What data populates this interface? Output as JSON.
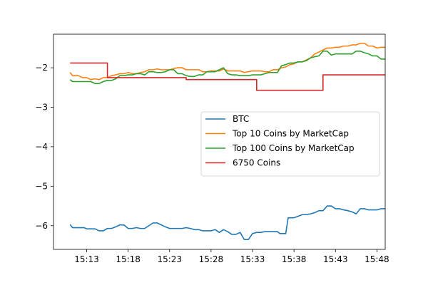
{
  "chart_data": {
    "type": "line",
    "title": "",
    "xlabel": "",
    "ylabel": "",
    "x_ticks": [
      "15:13",
      "15:18",
      "15:23",
      "15:28",
      "15:33",
      "15:38",
      "15:43",
      "15:48"
    ],
    "x_tick_minutes": [
      13,
      18,
      23,
      28,
      33,
      38,
      43,
      48
    ],
    "y_ticks": [
      -2,
      -3,
      -4,
      -5,
      -6
    ],
    "y_tick_labels": [
      "−2",
      "−3",
      "−4",
      "−5",
      "−6"
    ],
    "xlim": [
      "15:09",
      "15:49"
    ],
    "ylim": [
      -6.6,
      -1.15
    ],
    "grid": false,
    "legend_position": "center-right",
    "series": [
      {
        "name": "BTC",
        "color": "#1f77b4",
        "points": [
          [
            "15:11",
            -5.97
          ],
          [
            "15:11.3",
            -6.05
          ],
          [
            "15:12",
            -6.05
          ],
          [
            "15:12.7",
            -6.05
          ],
          [
            "15:13",
            -6.08
          ],
          [
            "15:13.5",
            -6.08
          ],
          [
            "15:14",
            -6.08
          ],
          [
            "15:14.5",
            -6.13
          ],
          [
            "15:15",
            -6.13
          ],
          [
            "15:15.5",
            -6.07
          ],
          [
            "15:16",
            -6.07
          ],
          [
            "15:16.5",
            -6.03
          ],
          [
            "15:17",
            -5.98
          ],
          [
            "15:17.5",
            -5.98
          ],
          [
            "15:18",
            -6.07
          ],
          [
            "15:18.5",
            -6.07
          ],
          [
            "15:19",
            -6.05
          ],
          [
            "15:19.5",
            -6.07
          ],
          [
            "15:20",
            -6.07
          ],
          [
            "15:20.5",
            -6.0
          ],
          [
            "15:21",
            -5.93
          ],
          [
            "15:21.5",
            -5.93
          ],
          [
            "15:22",
            -5.98
          ],
          [
            "15:22.5",
            -6.03
          ],
          [
            "15:23",
            -6.07
          ],
          [
            "15:23.5",
            -6.07
          ],
          [
            "15:24",
            -6.07
          ],
          [
            "15:24.5",
            -6.07
          ],
          [
            "15:25",
            -6.05
          ],
          [
            "15:25.5",
            -6.07
          ],
          [
            "15:26",
            -6.1
          ],
          [
            "15:26.5",
            -6.1
          ],
          [
            "15:27",
            -6.13
          ],
          [
            "15:27.5",
            -6.13
          ],
          [
            "15:28",
            -6.13
          ],
          [
            "15:28.5",
            -6.1
          ],
          [
            "15:29",
            -6.17
          ],
          [
            "15:29.5",
            -6.1
          ],
          [
            "15:30",
            -6.15
          ],
          [
            "15:30.5",
            -6.22
          ],
          [
            "15:31",
            -6.22
          ],
          [
            "15:31.5",
            -6.17
          ],
          [
            "15:32",
            -6.35
          ],
          [
            "15:32.5",
            -6.35
          ],
          [
            "15:33",
            -6.2
          ],
          [
            "15:33.5",
            -6.17
          ],
          [
            "15:34",
            -6.17
          ],
          [
            "15:34.5",
            -6.15
          ],
          [
            "15:35",
            -6.15
          ],
          [
            "15:35.5",
            -6.15
          ],
          [
            "15:36",
            -6.15
          ],
          [
            "15:36.3",
            -6.2
          ],
          [
            "15:37",
            -6.2
          ],
          [
            "15:37.3",
            -5.8
          ],
          [
            "15:38",
            -5.8
          ],
          [
            "15:38.5",
            -5.76
          ],
          [
            "15:39",
            -5.72
          ],
          [
            "15:39.5",
            -5.72
          ],
          [
            "15:40",
            -5.7
          ],
          [
            "15:40.5",
            -5.67
          ],
          [
            "15:41",
            -5.62
          ],
          [
            "15:41.5",
            -5.62
          ],
          [
            "15:42",
            -5.5
          ],
          [
            "15:42.5",
            -5.5
          ],
          [
            "15:43",
            -5.57
          ],
          [
            "15:43.5",
            -5.57
          ],
          [
            "15:44",
            -5.6
          ],
          [
            "15:44.5",
            -5.62
          ],
          [
            "15:45",
            -5.65
          ],
          [
            "15:45.5",
            -5.7
          ],
          [
            "15:46",
            -5.57
          ],
          [
            "15:46.5",
            -5.57
          ],
          [
            "15:47",
            -5.6
          ],
          [
            "15:47.5",
            -5.6
          ],
          [
            "15:48",
            -5.6
          ],
          [
            "15:48.5",
            -5.57
          ],
          [
            "15:49",
            -5.57
          ]
        ]
      },
      {
        "name": "Top 10 Coins by MarketCap",
        "color": "#ff7f0e",
        "points": [
          [
            "15:11",
            -2.12
          ],
          [
            "15:11.3",
            -2.2
          ],
          [
            "15:12",
            -2.2
          ],
          [
            "15:12.5",
            -2.25
          ],
          [
            "15:13",
            -2.25
          ],
          [
            "15:13.5",
            -2.3
          ],
          [
            "15:14",
            -2.28
          ],
          [
            "15:14.5",
            -2.3
          ],
          [
            "15:15",
            -2.25
          ],
          [
            "15:15.5",
            -2.25
          ],
          [
            "15:16",
            -2.2
          ],
          [
            "15:16.5",
            -2.18
          ],
          [
            "15:17",
            -2.15
          ],
          [
            "15:17.5",
            -2.15
          ],
          [
            "15:18",
            -2.12
          ],
          [
            "15:18.5",
            -2.15
          ],
          [
            "15:19",
            -2.15
          ],
          [
            "15:19.5",
            -2.12
          ],
          [
            "15:20",
            -2.1
          ],
          [
            "15:20.5",
            -2.05
          ],
          [
            "15:21",
            -2.05
          ],
          [
            "15:21.5",
            -2.03
          ],
          [
            "15:22",
            -2.05
          ],
          [
            "15:22.5",
            -2.05
          ],
          [
            "15:23",
            -2.05
          ],
          [
            "15:23.5",
            -2.02
          ],
          [
            "15:24",
            -2.0
          ],
          [
            "15:24.5",
            -2.0
          ],
          [
            "15:25",
            -2.05
          ],
          [
            "15:25.5",
            -2.05
          ],
          [
            "15:26",
            -2.05
          ],
          [
            "15:26.5",
            -2.05
          ],
          [
            "15:27",
            -2.1
          ],
          [
            "15:27.5",
            -2.1
          ],
          [
            "15:28",
            -2.08
          ],
          [
            "15:28.5",
            -2.08
          ],
          [
            "15:29",
            -2.08
          ],
          [
            "15:29.5",
            -2.03
          ],
          [
            "15:30",
            -2.08
          ],
          [
            "15:30.5",
            -2.08
          ],
          [
            "15:31",
            -2.08
          ],
          [
            "15:31.5",
            -2.08
          ],
          [
            "15:32",
            -2.12
          ],
          [
            "15:32.5",
            -2.1
          ],
          [
            "15:33",
            -2.08
          ],
          [
            "15:33.5",
            -2.08
          ],
          [
            "15:34",
            -2.08
          ],
          [
            "15:34.5",
            -2.1
          ],
          [
            "15:35",
            -2.1
          ],
          [
            "15:35.5",
            -2.05
          ],
          [
            "15:36",
            -2.05
          ],
          [
            "15:36.5",
            -2.0
          ],
          [
            "15:37",
            -1.98
          ],
          [
            "15:37.5",
            -1.92
          ],
          [
            "15:38",
            -1.9
          ],
          [
            "15:38.5",
            -1.85
          ],
          [
            "15:39",
            -1.85
          ],
          [
            "15:39.5",
            -1.8
          ],
          [
            "15:40",
            -1.75
          ],
          [
            "15:40.5",
            -1.65
          ],
          [
            "15:41",
            -1.6
          ],
          [
            "15:41.5",
            -1.55
          ],
          [
            "15:42",
            -1.5
          ],
          [
            "15:42.5",
            -1.5
          ],
          [
            "15:43",
            -1.48
          ],
          [
            "15:43.5",
            -1.48
          ],
          [
            "15:44",
            -1.45
          ],
          [
            "15:44.5",
            -1.45
          ],
          [
            "15:45",
            -1.42
          ],
          [
            "15:45.5",
            -1.42
          ],
          [
            "15:46",
            -1.38
          ],
          [
            "15:46.5",
            -1.38
          ],
          [
            "15:47",
            -1.45
          ],
          [
            "15:47.5",
            -1.45
          ],
          [
            "15:48",
            -1.5
          ],
          [
            "15:48.5",
            -1.48
          ],
          [
            "15:49",
            -1.48
          ]
        ]
      },
      {
        "name": "Top 100 Coins by MarketCap",
        "color": "#2ca02c",
        "points": [
          [
            "15:11",
            -2.3
          ],
          [
            "15:11.3",
            -2.35
          ],
          [
            "15:12",
            -2.35
          ],
          [
            "15:12.5",
            -2.35
          ],
          [
            "15:13",
            -2.35
          ],
          [
            "15:13.5",
            -2.35
          ],
          [
            "15:14",
            -2.4
          ],
          [
            "15:14.5",
            -2.4
          ],
          [
            "15:15",
            -2.35
          ],
          [
            "15:15.5",
            -2.32
          ],
          [
            "15:16",
            -2.32
          ],
          [
            "15:16.5",
            -2.28
          ],
          [
            "15:17",
            -2.2
          ],
          [
            "15:17.5",
            -2.2
          ],
          [
            "15:18",
            -2.18
          ],
          [
            "15:18.5",
            -2.18
          ],
          [
            "15:19",
            -2.15
          ],
          [
            "15:19.5",
            -2.15
          ],
          [
            "15:20",
            -2.18
          ],
          [
            "15:20.5",
            -2.1
          ],
          [
            "15:21",
            -2.1
          ],
          [
            "15:21.5",
            -2.12
          ],
          [
            "15:22",
            -2.12
          ],
          [
            "15:22.5",
            -2.1
          ],
          [
            "15:23",
            -2.05
          ],
          [
            "15:23.5",
            -2.05
          ],
          [
            "15:24",
            -2.15
          ],
          [
            "15:24.5",
            -2.15
          ],
          [
            "15:25",
            -2.2
          ],
          [
            "15:25.5",
            -2.22
          ],
          [
            "15:26",
            -2.22
          ],
          [
            "15:26.5",
            -2.18
          ],
          [
            "15:27",
            -2.18
          ],
          [
            "15:27.5",
            -2.1
          ],
          [
            "15:28",
            -2.1
          ],
          [
            "15:28.5",
            -2.1
          ],
          [
            "15:29",
            -2.05
          ],
          [
            "15:29.5",
            -2.0
          ],
          [
            "15:30",
            -2.15
          ],
          [
            "15:30.5",
            -2.18
          ],
          [
            "15:31",
            -2.18
          ],
          [
            "15:31.5",
            -2.2
          ],
          [
            "15:32",
            -2.2
          ],
          [
            "15:32.5",
            -2.2
          ],
          [
            "15:33",
            -2.18
          ],
          [
            "15:33.5",
            -2.18
          ],
          [
            "15:34",
            -2.18
          ],
          [
            "15:34.5",
            -2.15
          ],
          [
            "15:35",
            -2.12
          ],
          [
            "15:35.5",
            -2.12
          ],
          [
            "15:36",
            -2.12
          ],
          [
            "15:36.5",
            -1.95
          ],
          [
            "15:37",
            -1.92
          ],
          [
            "15:37.5",
            -1.88
          ],
          [
            "15:38",
            -1.88
          ],
          [
            "15:38.5",
            -1.85
          ],
          [
            "15:39",
            -1.85
          ],
          [
            "15:39.5",
            -1.82
          ],
          [
            "15:40",
            -1.75
          ],
          [
            "15:40.5",
            -1.72
          ],
          [
            "15:41",
            -1.7
          ],
          [
            "15:41.5",
            -1.58
          ],
          [
            "15:42",
            -1.58
          ],
          [
            "15:42.5",
            -1.68
          ],
          [
            "15:43",
            -1.65
          ],
          [
            "15:43.5",
            -1.65
          ],
          [
            "15:44",
            -1.65
          ],
          [
            "15:44.5",
            -1.65
          ],
          [
            "15:45",
            -1.65
          ],
          [
            "15:45.5",
            -1.58
          ],
          [
            "15:46",
            -1.58
          ],
          [
            "15:46.5",
            -1.62
          ],
          [
            "15:47",
            -1.65
          ],
          [
            "15:47.5",
            -1.7
          ],
          [
            "15:48",
            -1.7
          ],
          [
            "15:48.5",
            -1.78
          ],
          [
            "15:49",
            -1.78
          ]
        ]
      },
      {
        "name": "6750 Coins",
        "color": "#d62728",
        "points": [
          [
            "15:11",
            -1.88
          ],
          [
            "15:15.5",
            -1.88
          ],
          [
            "15:15.5",
            -2.25
          ],
          [
            "15:25",
            -2.25
          ],
          [
            "15:25",
            -2.3
          ],
          [
            "15:33.5",
            -2.3
          ],
          [
            "15:33.5",
            -2.57
          ],
          [
            "15:41.5",
            -2.57
          ],
          [
            "15:41.5",
            -2.18
          ],
          [
            "15:49",
            -2.18
          ]
        ]
      }
    ]
  }
}
